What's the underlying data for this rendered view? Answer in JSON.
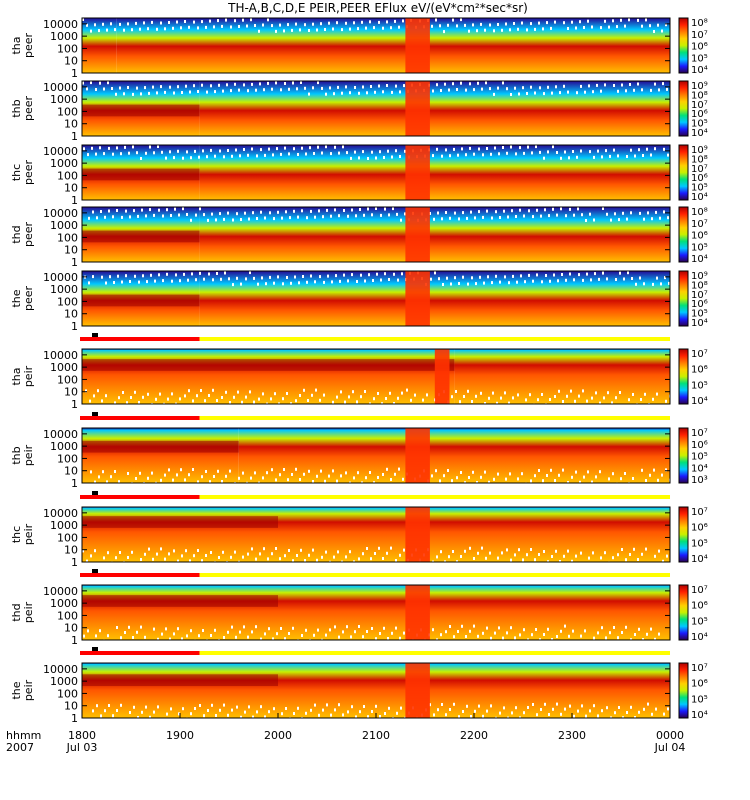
{
  "chart_data": {
    "type": "heatmap",
    "title": "TH-A,B,C,D,E PEIR,PEER EFlux eV/(eV*cm²*sec*sr)",
    "x_ticks": [
      {
        "label": "1800",
        "sub": "Jul 03",
        "hour": 0
      },
      {
        "label": "1900",
        "sub": "",
        "hour": 1
      },
      {
        "label": "2000",
        "sub": "",
        "hour": 2
      },
      {
        "label": "2100",
        "sub": "",
        "hour": 3
      },
      {
        "label": "2200",
        "sub": "",
        "hour": 4
      },
      {
        "label": "2300",
        "sub": "",
        "hour": 5
      },
      {
        "label": "0000",
        "sub": "Jul 04",
        "hour": 6
      }
    ],
    "x_axis_label": {
      "line1": "hhmm",
      "line2": "2007"
    },
    "y_ticks": [
      "10000",
      "1000",
      "100",
      "10",
      "1"
    ],
    "y_range_ev": [
      1,
      30000
    ],
    "y_scale": "log",
    "mode_bar": {
      "red_until_hour": 1.2,
      "colors": [
        "#ff0000",
        "#ffff00"
      ]
    },
    "panels": [
      {
        "probe": "tha",
        "species": "peer",
        "cbar": [
          "10⁴",
          "10⁵",
          "10⁶",
          "10⁷",
          "10⁸"
        ],
        "profile": [
          [
            0,
            0.35,
            5.3
          ],
          [
            0.35,
            1.0,
            5.4
          ],
          [
            1.0,
            2.0,
            5.5
          ],
          [
            2.0,
            6.0,
            5.6
          ]
        ],
        "peak_ev": 150,
        "gap": [
          3.3,
          3.55
        ]
      },
      {
        "probe": "thb",
        "species": "peer",
        "cbar": [
          "10⁴",
          "10⁵",
          "10⁶",
          "10⁷",
          "10⁸",
          "10⁹"
        ],
        "profile": [
          [
            0,
            1.2,
            6.6
          ],
          [
            1.2,
            6.0,
            6.0
          ]
        ],
        "peak_ev": 120,
        "gap": [
          3.3,
          3.55
        ]
      },
      {
        "probe": "thc",
        "species": "peer",
        "cbar": [
          "10⁴",
          "10⁵",
          "10⁶",
          "10⁷",
          "10⁸",
          "10⁹"
        ],
        "profile": [
          [
            0,
            1.2,
            6.6
          ],
          [
            1.2,
            6.0,
            6.0
          ]
        ],
        "peak_ev": 120,
        "gap": [
          3.3,
          3.55
        ]
      },
      {
        "probe": "thd",
        "species": "peer",
        "cbar": [
          "10⁴",
          "10⁵",
          "10⁶",
          "10⁷",
          "10⁸"
        ],
        "profile": [
          [
            0,
            1.2,
            6.6
          ],
          [
            1.2,
            6.0,
            6.0
          ]
        ],
        "peak_ev": 120,
        "gap": [
          3.3,
          3.55
        ]
      },
      {
        "probe": "the",
        "species": "peer",
        "cbar": [
          "10⁴",
          "10⁵",
          "10⁶",
          "10⁷",
          "10⁸",
          "10⁹"
        ],
        "profile": [
          [
            0,
            1.2,
            6.6
          ],
          [
            1.2,
            6.0,
            6.0
          ]
        ],
        "peak_ev": 120,
        "gap": [
          3.3,
          3.55
        ]
      },
      {
        "probe": "tha",
        "species": "peir",
        "cbar": [
          "10⁴",
          "10⁵",
          "10⁶",
          "10⁷"
        ],
        "profile": [
          [
            0,
            3.8,
            6.6
          ],
          [
            3.8,
            6.0,
            5.8
          ]
        ],
        "peak_ev": 1500,
        "gap": [
          3.6,
          3.75
        ]
      },
      {
        "probe": "thb",
        "species": "peir",
        "cbar": [
          "10³",
          "10⁴",
          "10⁵",
          "10⁶",
          "10⁷"
        ],
        "profile": [
          [
            0,
            1.6,
            6.6
          ],
          [
            1.6,
            6.0,
            5.8
          ]
        ],
        "peak_ev": 900,
        "gap": [
          3.3,
          3.55
        ]
      },
      {
        "probe": "thc",
        "species": "peir",
        "cbar": [
          "10⁴",
          "10⁵",
          "10⁶",
          "10⁷"
        ],
        "profile": [
          [
            0,
            2.0,
            6.6
          ],
          [
            2.0,
            6.0,
            5.8
          ]
        ],
        "peak_ev": 1800,
        "gap": [
          3.3,
          3.55
        ]
      },
      {
        "probe": "thd",
        "species": "peir",
        "cbar": [
          "10⁴",
          "10⁵",
          "10⁶",
          "10⁷"
        ],
        "profile": [
          [
            0,
            2.0,
            6.6
          ],
          [
            2.0,
            6.0,
            5.8
          ]
        ],
        "peak_ev": 1500,
        "gap": [
          3.3,
          3.55
        ]
      },
      {
        "probe": "the",
        "species": "peir",
        "cbar": [
          "10⁴",
          "10⁵",
          "10⁶",
          "10⁷"
        ],
        "profile": [
          [
            0,
            2.0,
            6.6
          ],
          [
            2.0,
            6.0,
            5.8
          ]
        ],
        "peak_ev": 1200,
        "gap": [
          3.3,
          3.55
        ]
      }
    ]
  }
}
